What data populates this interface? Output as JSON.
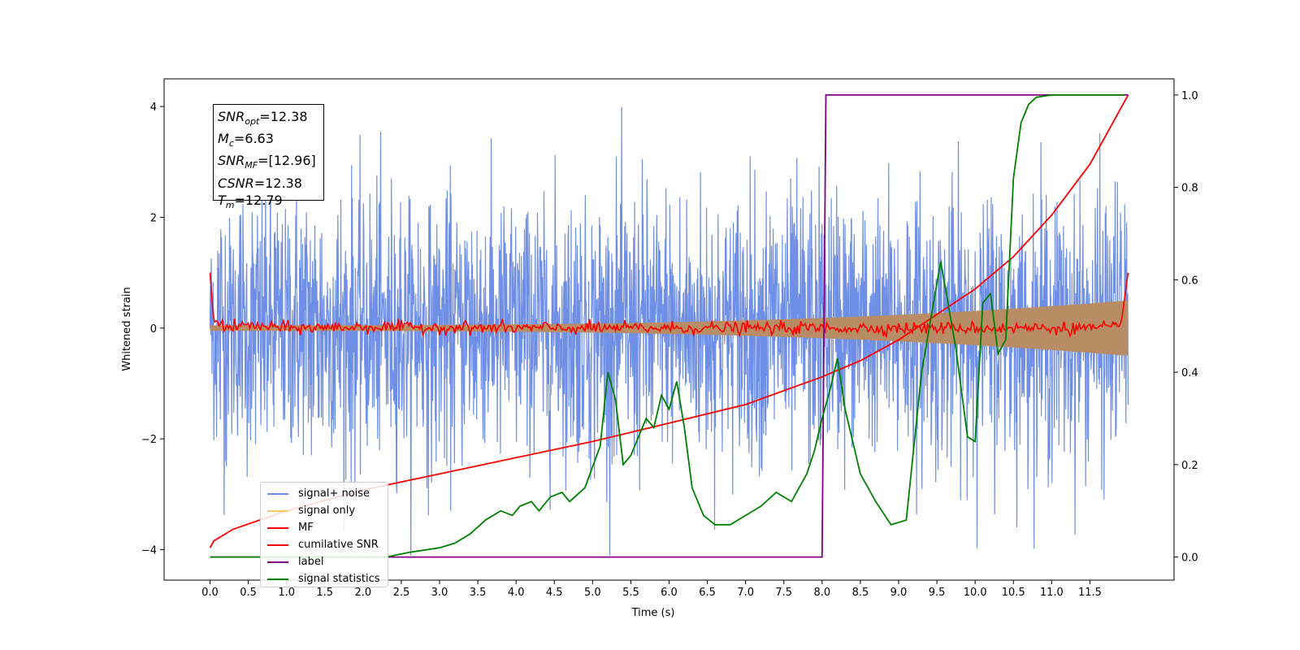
{
  "chart_data": {
    "type": "line",
    "xlabel": "Time (s)",
    "ylabel": "Whitened strain",
    "xlim": [
      -0.6,
      12.6
    ],
    "ylim": [
      -4.55,
      4.5
    ],
    "y2lim": [
      -0.05,
      1.035
    ],
    "xticks": [
      "0.0",
      "0.5",
      "1.0",
      "1.5",
      "2.0",
      "2.5",
      "3.0",
      "3.5",
      "4.0",
      "4.5",
      "5.0",
      "5.5",
      "6.0",
      "6.5",
      "7.0",
      "7.5",
      "8.0",
      "8.5",
      "9.0",
      "9.5",
      "10.0",
      "10.5",
      "11.0",
      "11.5"
    ],
    "yticks": [
      "−4",
      "−2",
      "0",
      "2",
      "4"
    ],
    "y2ticks": [
      "0.0",
      "0.2",
      "0.4",
      "0.6",
      "0.8",
      "1.0"
    ],
    "colors": {
      "signal_noise": "#6f8ee6",
      "signal_only": "#ffc966",
      "envelope": "#b88d66",
      "mf": "#ff0000",
      "cumulative_snr": "#ff0000",
      "label": "#800080",
      "signal_statistics": "#008000"
    },
    "legend_position": "lower-left",
    "series": [
      {
        "name": "signal+ noise",
        "axis": "left",
        "render": "noise band",
        "x_range": [
          0,
          12.0
        ],
        "typical_range": [
          -1.8,
          2.3
        ],
        "extremes": [
          -4.1,
          4.05
        ]
      },
      {
        "name": "signal only",
        "axis": "left",
        "render": "chirp envelope",
        "envelope_start": 0.05,
        "envelope_end": 0.5
      },
      {
        "name": "MF",
        "axis": "left",
        "values_note": "oscillates around 0",
        "x": [
          0.0,
          0.02,
          0.05,
          0.1,
          0.2,
          0.5,
          1.0,
          2.0,
          4.0,
          6.0,
          8.0,
          10.0,
          11.9,
          11.95,
          12.0
        ],
        "y": [
          1.0,
          0.6,
          0.1,
          0.15,
          0.0,
          0.05,
          0.0,
          0.02,
          0.0,
          0.0,
          0.0,
          0.0,
          0.0,
          0.5,
          1.0
        ]
      },
      {
        "name": "cumilative SNR",
        "axis": "right",
        "x": [
          0.0,
          0.05,
          0.3,
          1.0,
          2.0,
          3.0,
          4.0,
          5.0,
          6.0,
          7.0,
          8.0,
          8.5,
          9.0,
          9.5,
          10.0,
          10.5,
          11.0,
          11.5,
          12.0
        ],
        "y": [
          0.02,
          0.035,
          0.06,
          0.1,
          0.145,
          0.18,
          0.215,
          0.25,
          0.29,
          0.33,
          0.39,
          0.425,
          0.47,
          0.525,
          0.58,
          0.65,
          0.74,
          0.85,
          1.0
        ]
      },
      {
        "name": "label",
        "axis": "right",
        "x": [
          0.0,
          8.0,
          8.05,
          12.0
        ],
        "y": [
          0.0,
          0.0,
          1.0,
          1.0
        ]
      },
      {
        "name": "signal statistics",
        "axis": "right",
        "x": [
          0.0,
          0.5,
          1.0,
          1.5,
          2.0,
          2.3,
          2.6,
          3.0,
          3.2,
          3.4,
          3.6,
          3.8,
          3.95,
          4.05,
          4.2,
          4.3,
          4.45,
          4.6,
          4.7,
          4.9,
          5.1,
          5.2,
          5.3,
          5.4,
          5.5,
          5.6,
          5.7,
          5.8,
          5.9,
          6.0,
          6.1,
          6.2,
          6.3,
          6.45,
          6.6,
          6.8,
          7.0,
          7.2,
          7.4,
          7.6,
          7.8,
          7.9,
          8.0,
          8.1,
          8.2,
          8.3,
          8.5,
          8.7,
          8.9,
          9.1,
          9.3,
          9.55,
          9.75,
          9.9,
          10.0,
          10.1,
          10.2,
          10.3,
          10.4,
          10.5,
          10.6,
          10.7,
          10.8,
          11.0,
          11.5,
          11.95
        ],
        "y": [
          0.0,
          0.0,
          0.0,
          0.0,
          0.0,
          0.0,
          0.01,
          0.02,
          0.03,
          0.05,
          0.08,
          0.1,
          0.09,
          0.11,
          0.12,
          0.1,
          0.13,
          0.14,
          0.12,
          0.15,
          0.24,
          0.4,
          0.34,
          0.2,
          0.22,
          0.26,
          0.3,
          0.28,
          0.35,
          0.32,
          0.38,
          0.28,
          0.15,
          0.09,
          0.07,
          0.07,
          0.09,
          0.11,
          0.14,
          0.12,
          0.18,
          0.23,
          0.3,
          0.36,
          0.43,
          0.32,
          0.18,
          0.12,
          0.07,
          0.08,
          0.4,
          0.64,
          0.45,
          0.26,
          0.25,
          0.55,
          0.57,
          0.44,
          0.47,
          0.82,
          0.94,
          0.98,
          0.995,
          1.0,
          1.0,
          1.0
        ]
      }
    ]
  },
  "stats_box": [
    {
      "sym": "SNR",
      "sub": "opt",
      "value": "=12.38"
    },
    {
      "sym": "M",
      "sub": "c",
      "value": "=6.63"
    },
    {
      "sym": "SNR",
      "sub": "MF",
      "value": "=[12.96]"
    },
    {
      "sym": "CSNR",
      "sub": "",
      "value": "=12.38"
    },
    {
      "sym": "T",
      "sub": "m",
      "value": "=12.79"
    }
  ],
  "legend": [
    {
      "label": "signal+ noise",
      "color": "#6f8ee6"
    },
    {
      "label": "signal only",
      "color": "#ffc966"
    },
    {
      "label": "MF",
      "color": "#ff0000"
    },
    {
      "label": "cumilative SNR",
      "color": "#ff0000"
    },
    {
      "label": "label",
      "color": "#800080"
    },
    {
      "label": "signal statistics",
      "color": "#008000"
    }
  ]
}
